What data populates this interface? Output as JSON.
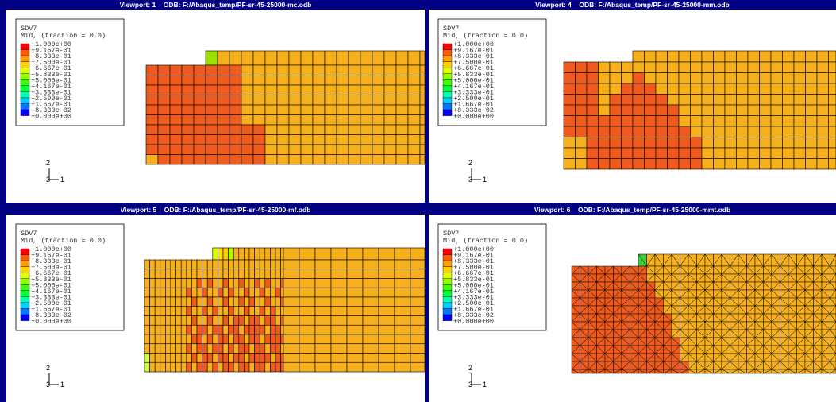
{
  "viewports": [
    {
      "label": "Viewport: 1",
      "odb": "ODB: F:/Abaqus_temp/PF-sr-45-25000-mc.odb"
    },
    {
      "label": "Viewport: 4",
      "odb": "ODB: F:/Abaqus_temp/PF-sr-45-25000-mm.odb"
    },
    {
      "label": "Viewport: 5",
      "odb": "ODB: F:/Abaqus_temp/PF-sr-45-25000-mf.odb"
    },
    {
      "label": "Viewport: 6",
      "odb": "ODB: F:/Abaqus_temp/PF-sr-45-25000-mmt.odb"
    }
  ],
  "legend": {
    "variable": "SDV7",
    "section": "Mid, (fraction = 0.0)",
    "labels": [
      "+1.000e+00",
      "+9.167e-01",
      "+8.333e-01",
      "+7.500e-01",
      "+6.667e-01",
      "+5.833e-01",
      "+5.000e-01",
      "+4.167e-01",
      "+3.333e-01",
      "+2.500e-01",
      "+1.667e-01",
      "+8.333e-02",
      "+0.000e+00"
    ]
  },
  "triad": {
    "vertical": "2",
    "normal": "3",
    "horizontal": "1"
  }
}
